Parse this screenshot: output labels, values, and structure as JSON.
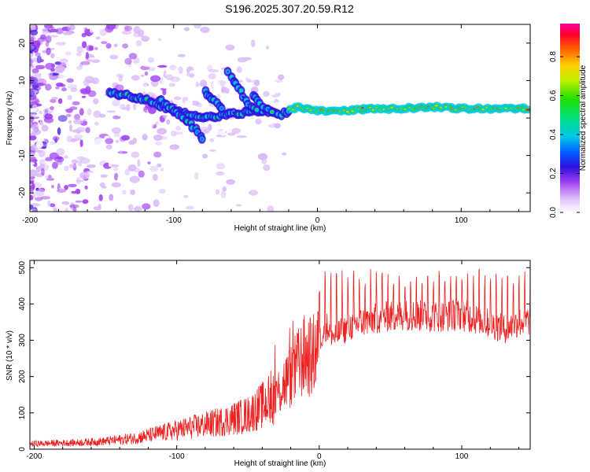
{
  "title": "S196.2025.307.20.59.R12",
  "colors": {
    "snr_line": "#ee2020",
    "axis": "#000000"
  },
  "chart_data": [
    {
      "type": "heatmap",
      "name": "spectrogram",
      "xlabel": "Height of straight line (km)",
      "ylabel": "Frequency (Hz)",
      "xlim": [
        -200,
        148
      ],
      "ylim": [
        -25,
        25
      ],
      "xticks": [
        -200,
        -100,
        0,
        100
      ],
      "xtick_labels": [
        "-200",
        "-100",
        "0",
        "100"
      ],
      "yticks": [
        -20,
        -10,
        0,
        10,
        20
      ],
      "ytick_labels": [
        "-20",
        "-10",
        "0",
        "10",
        "20"
      ],
      "colorbar": {
        "label": "Normalized spectral amplitude",
        "range": [
          0,
          0.97
        ],
        "ticks": [
          0,
          0.2,
          0.4,
          0.6,
          0.8
        ],
        "tick_labels": [
          "0.0",
          "0.2",
          "0.4",
          "0.6",
          "0.8"
        ]
      },
      "ridges": [
        {
          "name": "main-track",
          "points": [
            [
              -145,
              7
            ],
            [
              -120,
              5
            ],
            [
              -100,
              2
            ],
            [
              -80,
              0
            ],
            [
              -60,
              1
            ],
            [
              -40,
              2
            ],
            [
              -25,
              1
            ],
            [
              -15,
              3
            ],
            [
              0,
              2
            ],
            [
              20,
              2
            ],
            [
              40,
              2.5
            ],
            [
              60,
              2.5
            ],
            [
              80,
              3
            ],
            [
              100,
              2.5
            ],
            [
              120,
              2.5
            ],
            [
              148,
              2.5
            ]
          ]
        },
        {
          "name": "descending-branch",
          "points": [
            [
              -110,
              5
            ],
            [
              -100,
              2
            ],
            [
              -90,
              -1
            ],
            [
              -78,
              -6
            ]
          ]
        },
        {
          "name": "upper-branch-a",
          "points": [
            [
              -78,
              7
            ],
            [
              -72,
              5
            ],
            [
              -65,
              2
            ]
          ]
        },
        {
          "name": "upper-branch-b",
          "points": [
            [
              -62,
              12
            ],
            [
              -55,
              8
            ],
            [
              -48,
              4
            ],
            [
              -40,
              1
            ]
          ]
        },
        {
          "name": "upper-branch-c",
          "points": [
            [
              -45,
              6
            ],
            [
              -38,
              3
            ],
            [
              -30,
              1
            ]
          ]
        }
      ]
    },
    {
      "type": "line",
      "name": "snr",
      "xlabel": "Height of straight line (km)",
      "ylabel": "SNR (10 * v/v)",
      "xlim": [
        -203,
        148
      ],
      "ylim": [
        0,
        520
      ],
      "xticks": [
        -200,
        -100,
        0,
        100
      ],
      "xtick_labels": [
        "-200",
        "-100",
        "0",
        "100"
      ],
      "yticks": [
        0,
        100,
        200,
        300,
        400,
        500
      ],
      "ytick_labels": [
        "0",
        "100",
        "200",
        "300",
        "400",
        "500"
      ],
      "envelope_x": [
        -203,
        -170,
        -150,
        -130,
        -110,
        -90,
        -70,
        -50,
        -40,
        -30,
        -25,
        -20,
        -15,
        -10,
        -5,
        0,
        5,
        10,
        20,
        30,
        40,
        60,
        80,
        100,
        120,
        130,
        140,
        148
      ],
      "envelope_y": [
        15,
        18,
        22,
        30,
        45,
        60,
        75,
        95,
        120,
        150,
        180,
        200,
        230,
        260,
        250,
        300,
        340,
        310,
        335,
        350,
        360,
        370,
        365,
        370,
        345,
        330,
        350,
        355
      ],
      "spike_spacing": 4,
      "spike_from_x": 0,
      "spike_peak": 490
    }
  ]
}
